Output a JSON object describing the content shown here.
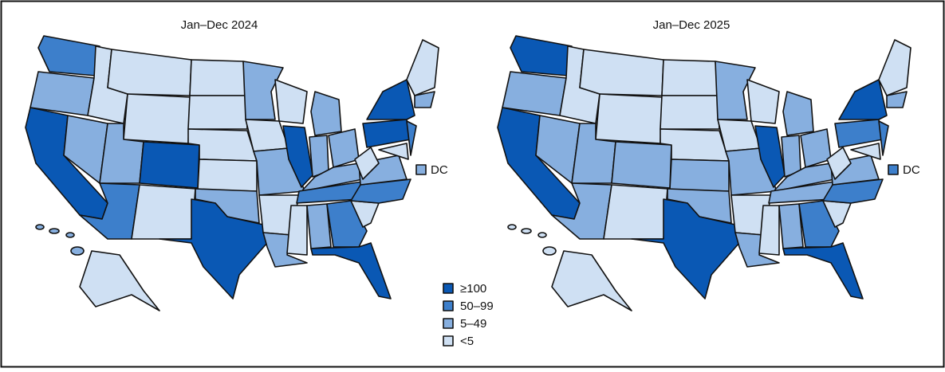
{
  "maps": [
    {
      "title": "Jan–Dec 2024",
      "dc_label": "DC"
    },
    {
      "title": "Jan–Dec 2025",
      "dc_label": "DC"
    }
  ],
  "legend": [
    {
      "label": "≥100",
      "color": "#0a58b4"
    },
    {
      "label": "50–99",
      "color": "#3d7fcb"
    },
    {
      "label": "5–49",
      "color": "#87afdf"
    },
    {
      "label": "<5",
      "color": "#cfe0f3"
    }
  ]
}
